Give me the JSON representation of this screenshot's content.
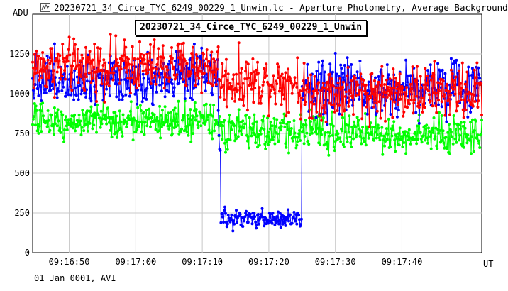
{
  "window": {
    "title": "20230721_34_Circe_TYC_6249_00229_1_Unwin.lc - Aperture Photometry, Average Background",
    "icon": "lightcurve-app-icon"
  },
  "footer": {
    "date_label": "01 Jan 0001, AVI"
  },
  "chart_data": {
    "type": "line",
    "title": "20230721_34_Circe_TYC_6249_00229_1_Unwin",
    "ylabel": "ADU",
    "xlabel": "UT",
    "ylim": [
      0,
      1500
    ],
    "y_ticks": [
      0,
      250,
      500,
      750,
      1000,
      1250
    ],
    "x_ticks": [
      "09:16:50",
      "09:17:00",
      "09:17:10",
      "09:17:20",
      "09:17:30",
      "09:17:40"
    ],
    "x_range_seconds": [
      0,
      67.5
    ],
    "x_tick_seconds": [
      5.5,
      15.5,
      25.5,
      35.5,
      45.5,
      55.5
    ],
    "grid": true,
    "series": [
      {
        "color": "#ff0000",
        "segments": [
          {
            "t0": 0,
            "t1": 28,
            "level": 1170,
            "noise": 110
          },
          {
            "t0": 28,
            "t1": 40,
            "level": 1080,
            "noise": 110
          },
          {
            "t0": 40,
            "t1": 52,
            "level": 1010,
            "noise": 110
          },
          {
            "t0": 52,
            "t1": 67.5,
            "level": 1010,
            "noise": 110
          }
        ]
      },
      {
        "color": "#0000ff",
        "segments": [
          {
            "t0": 0,
            "t1": 28,
            "level": 1100,
            "noise": 110
          },
          {
            "t0": 28,
            "t1": 28.3,
            "level": 700,
            "noise": 60
          },
          {
            "t0": 28.3,
            "t1": 40.5,
            "level": 210,
            "noise": 40
          },
          {
            "t0": 40.5,
            "t1": 67.5,
            "level": 1040,
            "noise": 120
          }
        ]
      },
      {
        "color": "#00ff00",
        "segments": [
          {
            "t0": 0,
            "t1": 28,
            "level": 830,
            "noise": 70
          },
          {
            "t0": 28,
            "t1": 52,
            "level": 760,
            "noise": 75
          },
          {
            "t0": 52,
            "t1": 67.5,
            "level": 740,
            "noise": 80
          }
        ]
      }
    ]
  }
}
